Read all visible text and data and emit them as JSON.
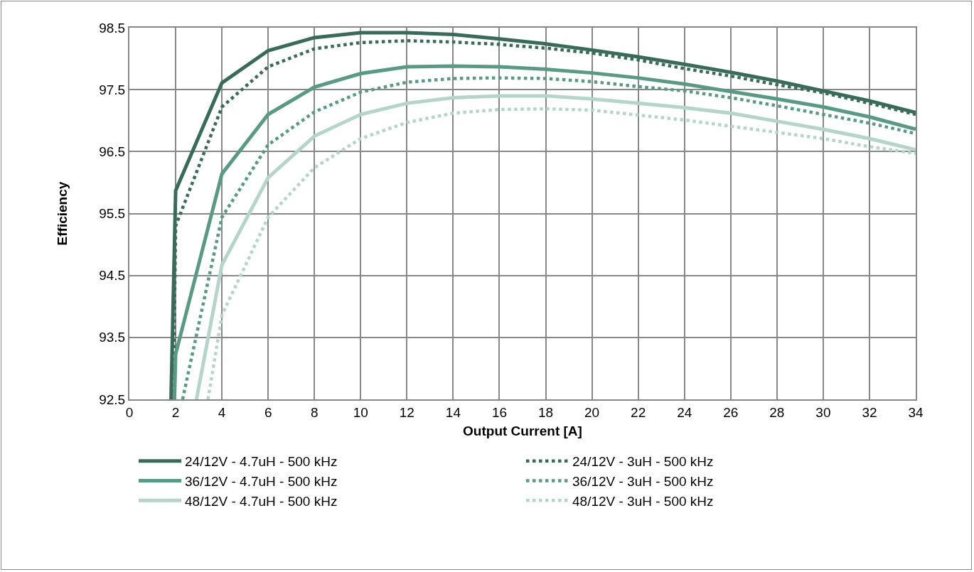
{
  "chart_data": {
    "type": "line",
    "xlabel": "Output Current [A]",
    "ylabel": "Efficiency",
    "xlim": [
      0,
      34
    ],
    "xticks": [
      0,
      2,
      4,
      6,
      8,
      10,
      12,
      14,
      16,
      18,
      20,
      22,
      24,
      26,
      28,
      30,
      32,
      34
    ],
    "ylim": [
      92.5,
      98.5
    ],
    "yticks": [
      92.5,
      93.5,
      94.5,
      95.5,
      96.5,
      97.5,
      98.5
    ],
    "grid": true,
    "legend": "bottom",
    "marker": "none",
    "series": [
      {
        "name": "24/12V - 4.7uH - 500 kHz",
        "color": "#3a6b5a",
        "line_style": "solid",
        "x": [
          1.8,
          2,
          4,
          6,
          8,
          10,
          12,
          14,
          16,
          18,
          20,
          22,
          24,
          26,
          28,
          30,
          32,
          34
        ],
        "values": [
          92.5,
          95.87,
          97.61,
          98.13,
          98.34,
          98.42,
          98.42,
          98.39,
          98.32,
          98.24,
          98.14,
          98.03,
          97.91,
          97.78,
          97.64,
          97.48,
          97.32,
          97.13
        ]
      },
      {
        "name": "24/12V - 3uH - 500 kHz",
        "color": "#3a6b5a",
        "line_style": "dotted",
        "x": [
          1.9,
          2,
          4,
          6,
          8,
          10,
          12,
          14,
          16,
          18,
          20,
          22,
          24,
          26,
          28,
          30,
          32,
          34
        ],
        "values": [
          92.5,
          95.3,
          97.22,
          97.87,
          98.16,
          98.26,
          98.29,
          98.27,
          98.23,
          98.17,
          98.09,
          97.98,
          97.84,
          97.72,
          97.58,
          97.45,
          97.28,
          97.1
        ]
      },
      {
        "name": "36/12V - 4.7uH - 500 kHz",
        "color": "#5a9a85",
        "line_style": "solid",
        "x": [
          1.95,
          2,
          4,
          6,
          8,
          10,
          12,
          14,
          16,
          18,
          20,
          22,
          24,
          26,
          28,
          30,
          32,
          34
        ],
        "values": [
          92.5,
          93.23,
          96.14,
          97.1,
          97.54,
          97.76,
          97.87,
          97.88,
          97.87,
          97.83,
          97.77,
          97.69,
          97.59,
          97.47,
          97.35,
          97.22,
          97.06,
          96.86
        ]
      },
      {
        "name": "36/12V - 3uH - 500 kHz",
        "color": "#5a9a85",
        "line_style": "dotted",
        "x": [
          2.3,
          4,
          6,
          8,
          10,
          12,
          14,
          16,
          18,
          20,
          22,
          24,
          26,
          28,
          30,
          32,
          34
        ],
        "values": [
          92.5,
          95.44,
          96.61,
          97.14,
          97.46,
          97.62,
          97.68,
          97.69,
          97.68,
          97.63,
          97.55,
          97.48,
          97.37,
          97.24,
          97.1,
          96.96,
          96.79
        ]
      },
      {
        "name": "48/12V - 4.7uH - 500 kHz",
        "color": "#b5d5ca",
        "line_style": "solid",
        "x": [
          2.9,
          4,
          6,
          8,
          10,
          12,
          14,
          16,
          18,
          20,
          22,
          24,
          26,
          28,
          30,
          32,
          34
        ],
        "values": [
          92.5,
          94.67,
          96.08,
          96.75,
          97.1,
          97.28,
          97.37,
          97.4,
          97.4,
          97.35,
          97.28,
          97.21,
          97.12,
          96.99,
          96.86,
          96.71,
          96.53
        ]
      },
      {
        "name": "48/12V - 3uH - 500 kHz",
        "color": "#b5d5ca",
        "line_style": "dotted",
        "x": [
          3.4,
          4,
          6,
          8,
          10,
          12,
          14,
          16,
          18,
          20,
          22,
          24,
          26,
          28,
          30,
          32,
          34
        ],
        "values": [
          92.5,
          93.86,
          95.44,
          96.24,
          96.71,
          96.97,
          97.12,
          97.18,
          97.19,
          97.17,
          97.09,
          97.01,
          96.91,
          96.81,
          96.71,
          96.58,
          96.47
        ]
      }
    ]
  }
}
